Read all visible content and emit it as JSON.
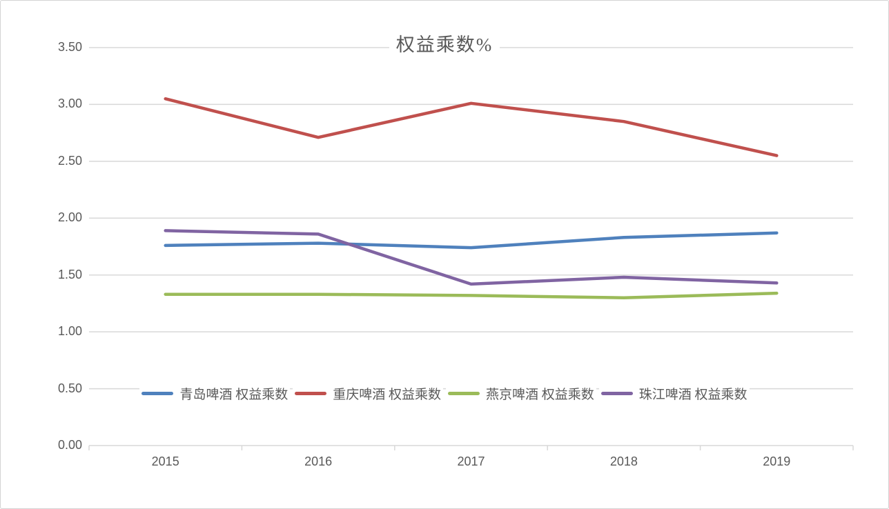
{
  "chart": {
    "title": "权益乘数%"
  },
  "chart_data": {
    "type": "line",
    "title": "权益乘数%",
    "xlabel": "",
    "ylabel": "",
    "categories": [
      "2015",
      "2016",
      "2017",
      "2018",
      "2019"
    ],
    "series": [
      {
        "name": "青岛啤酒 权益乘数",
        "color": "#4F81BD",
        "values": [
          1.76,
          1.78,
          1.74,
          1.83,
          1.87
        ]
      },
      {
        "name": "重庆啤酒 权益乘数",
        "color": "#C0504D",
        "values": [
          3.05,
          2.71,
          3.01,
          2.85,
          2.55
        ]
      },
      {
        "name": "燕京啤酒 权益乘数",
        "color": "#9BBB59",
        "values": [
          1.33,
          1.33,
          1.32,
          1.3,
          1.34
        ]
      },
      {
        "name": "珠江啤酒 权益乘数",
        "color": "#8064A2",
        "values": [
          1.89,
          1.86,
          1.42,
          1.48,
          1.43
        ]
      }
    ],
    "ylim": [
      0,
      3.5
    ],
    "ytick_step": 0.5,
    "ytick_labels": [
      "0.00",
      "0.50",
      "1.00",
      "1.50",
      "2.00",
      "2.50",
      "3.00",
      "3.50"
    ],
    "grid": true,
    "legend_position": "inside-bottom"
  },
  "colors": {
    "gridline": "#D8D8D8",
    "axis_text": "#595959",
    "title_text": "#595959",
    "frame_border": "#D3D3D3",
    "background": "#FFFFFF"
  }
}
